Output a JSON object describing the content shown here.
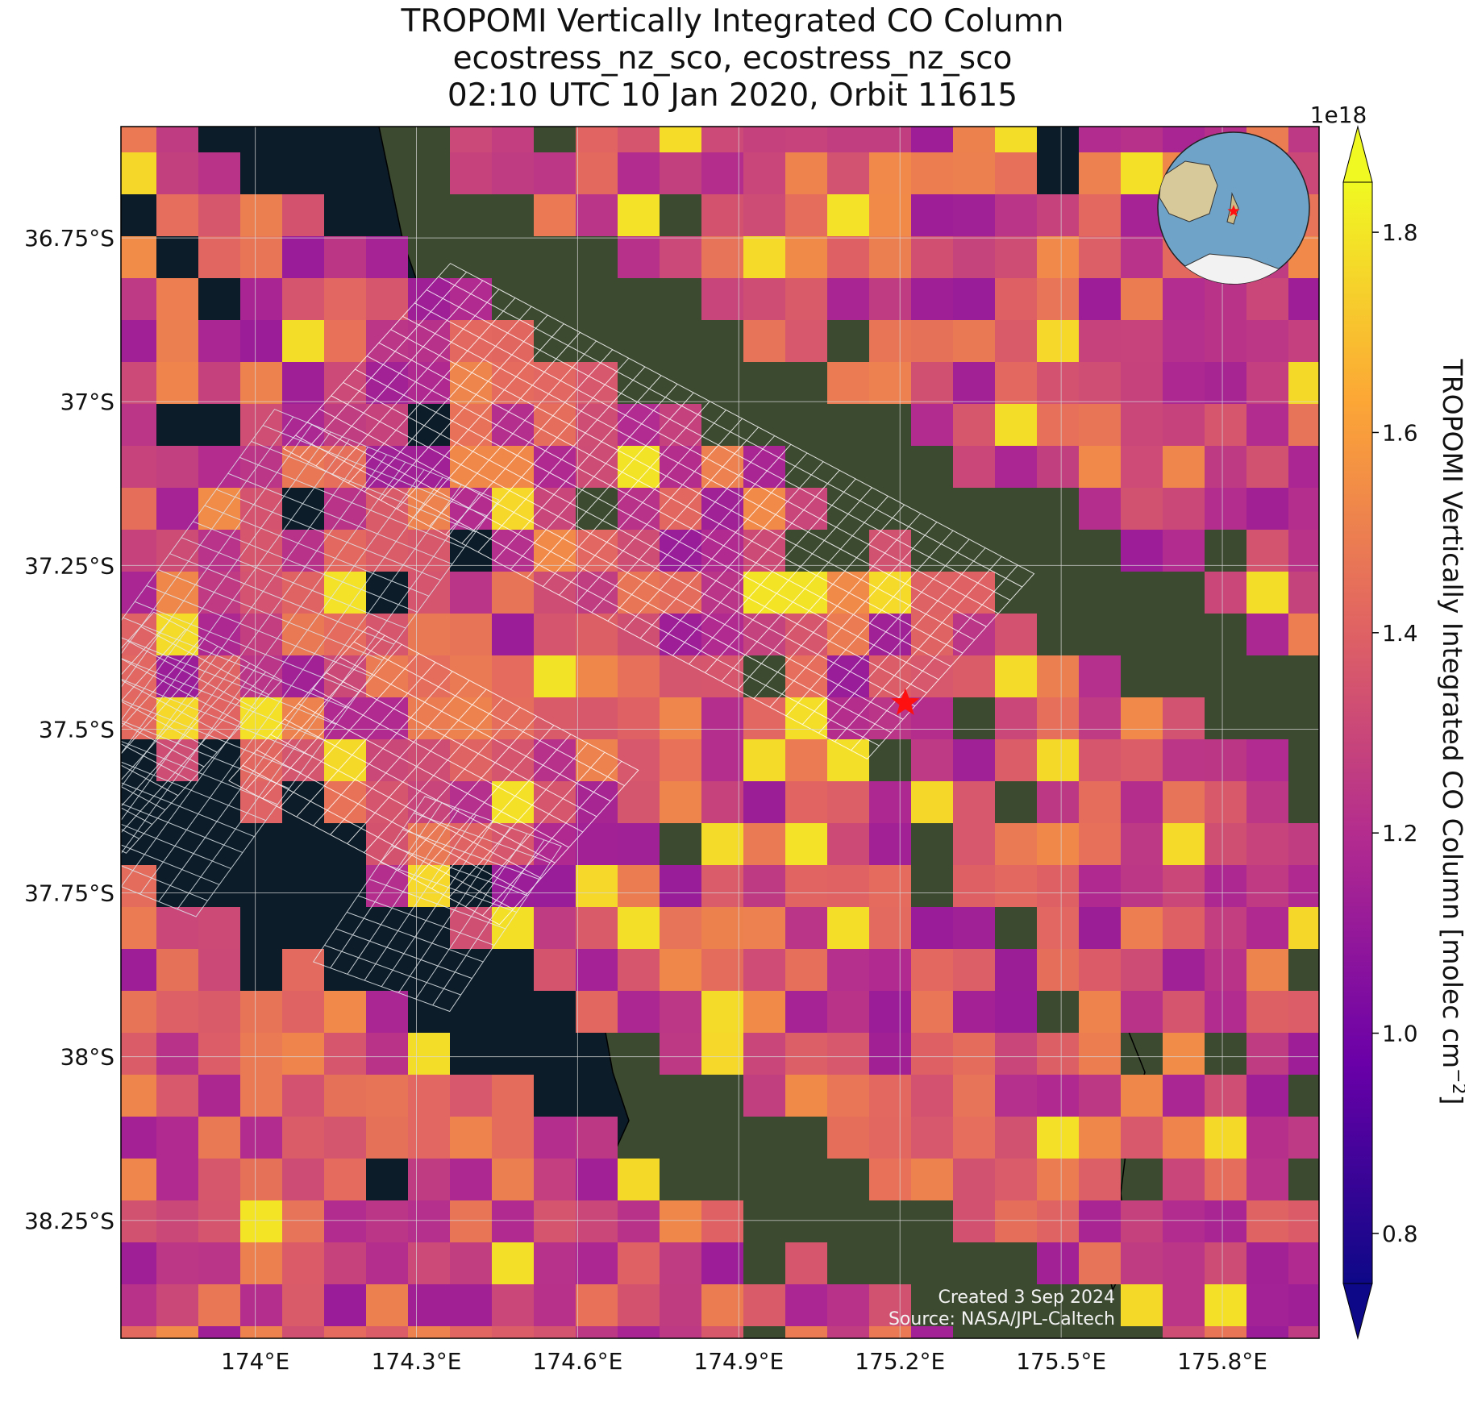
{
  "title": {
    "line1": "TROPOMI Vertically Integrated CO Column",
    "line2": "ecostress_nz_sco, ecostress_nz_sco",
    "line3": "02:10 UTC 10 Jan 2020, Orbit 11615"
  },
  "map": {
    "lon_range": [
      173.75,
      175.98
    ],
    "lat_range": [
      -38.43,
      -36.58
    ],
    "lon_ticks": [
      "174°E",
      "174.3°E",
      "174.6°E",
      "174.9°E",
      "175.2°E",
      "175.5°E",
      "175.8°E"
    ],
    "lon_tick_values": [
      174.0,
      174.3,
      174.6,
      174.9,
      175.2,
      175.5,
      175.8
    ],
    "lat_ticks": [
      "36.75°S",
      "37°S",
      "37.25°S",
      "37.5°S",
      "37.75°S",
      "38°S",
      "38.25°S"
    ],
    "lat_tick_values": [
      -36.75,
      -37.0,
      -37.25,
      -37.5,
      -37.75,
      -38.0,
      -38.25
    ],
    "gridlines": true,
    "site_marker": {
      "lon": 175.21,
      "lat": -37.46,
      "symbol": "star",
      "color": "#ff1010"
    },
    "ocean_color": "#0c1c28",
    "land_color": "#3c4a30"
  },
  "colorbar": {
    "label": "TROPOMI Vertically Integrated CO Column [molec cm",
    "label_sup": "−2",
    "label_end": "]",
    "multiplier": "1e18",
    "ticks": [
      "0.8",
      "1.0",
      "1.2",
      "1.4",
      "1.6",
      "1.8"
    ],
    "tick_values": [
      0.8,
      1.0,
      1.2,
      1.4,
      1.6,
      1.8
    ],
    "vmin": 0.8,
    "vmax": 1.8,
    "colormap": "plasma",
    "extend": "both"
  },
  "inset": {
    "type": "globe",
    "marker_color": "#ff1010"
  },
  "credits": {
    "created": "Created 3 Sep 2024",
    "source": "Source: NASA/JPL-Caltech"
  }
}
